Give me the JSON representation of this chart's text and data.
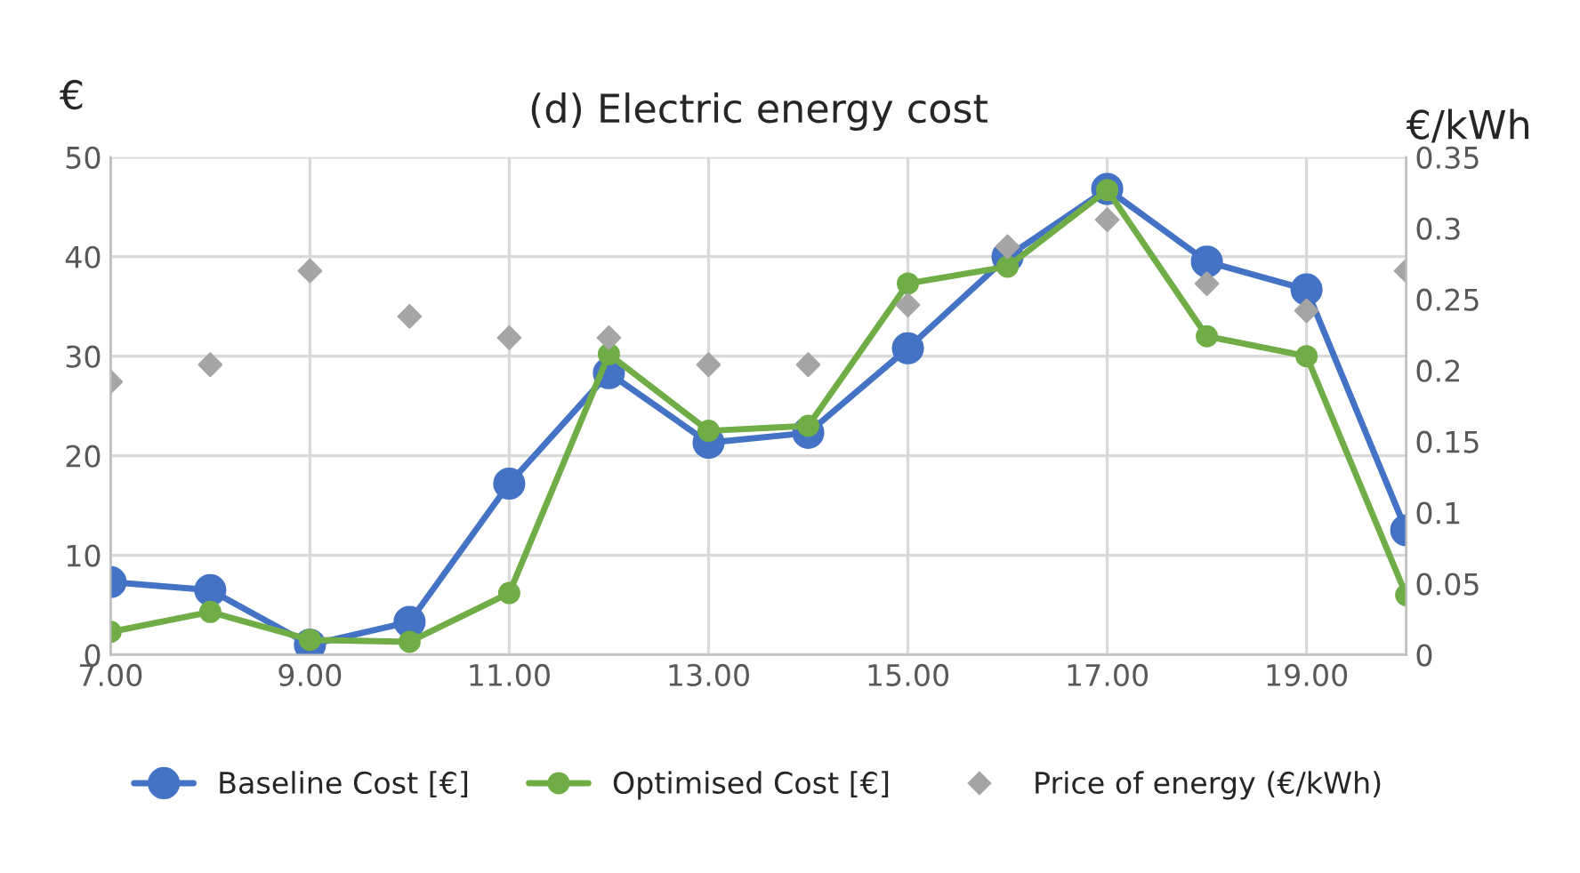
{
  "chart_data": {
    "type": "line",
    "title": "(d) Electric energy cost",
    "ylabel": "€",
    "y2label": "€/kWh",
    "x": [
      7,
      8,
      9,
      10,
      11,
      12,
      13,
      14,
      15,
      16,
      17,
      18,
      19,
      20
    ],
    "series": [
      {
        "name": "Baseline Cost [€]",
        "color": "#4472c4",
        "values": [
          7.3,
          6.5,
          1.0,
          3.3,
          17.2,
          28.3,
          21.3,
          22.3,
          30.8,
          40.0,
          46.8,
          39.5,
          36.7,
          12.5
        ]
      },
      {
        "name": "Optimised Cost [€]",
        "color": "#70ad47",
        "values": [
          2.3,
          4.3,
          1.5,
          1.3,
          6.2,
          30.2,
          22.5,
          23.0,
          37.3,
          39.0,
          46.7,
          32.0,
          30.0,
          6.0
        ]
      },
      {
        "name": "Price of energy (€/kWh)",
        "color": "#a5a5a5",
        "type": "scatter",
        "marker": "diamond",
        "axis": "y2",
        "values": [
          0.192,
          0.204,
          0.27,
          0.238,
          0.223,
          0.223,
          0.204,
          0.204,
          0.246,
          0.287,
          0.306,
          0.261,
          0.242,
          0.27
        ]
      }
    ],
    "marker": "circle",
    "line_style": "solid",
    "xlim": [
      7,
      20
    ],
    "xticks": [
      {
        "value": 7,
        "label": "7.00"
      },
      {
        "value": 9,
        "label": "9.00"
      },
      {
        "value": 11,
        "label": "11.00"
      },
      {
        "value": 13,
        "label": "13.00"
      },
      {
        "value": 15,
        "label": "15.00"
      },
      {
        "value": 17,
        "label": "17.00"
      },
      {
        "value": 19,
        "label": "19.00"
      }
    ],
    "ylim": [
      0,
      50
    ],
    "yticks": [
      0,
      10,
      20,
      30,
      40,
      50
    ],
    "y2lim": [
      0,
      0.35
    ],
    "y2ticks": [
      {
        "value": 0,
        "label": "0"
      },
      0.05,
      0.1,
      0.15,
      0.2,
      0.25,
      0.3,
      0.35
    ],
    "grid": true,
    "legend": "bottom"
  }
}
